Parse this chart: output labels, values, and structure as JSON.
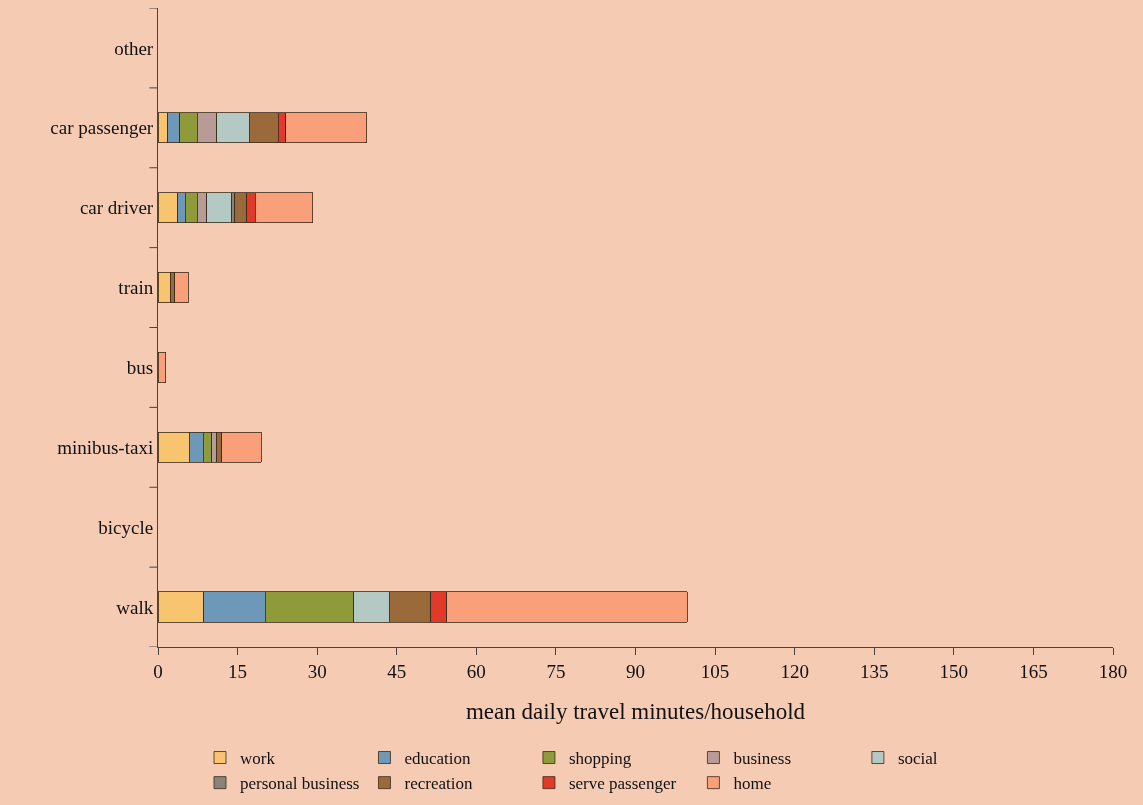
{
  "chart_data": {
    "type": "bar",
    "orientation": "horizontal",
    "stacked": true,
    "xlabel": "mean daily travel minutes/household",
    "categories": [
      "other",
      "car passenger",
      "car driver",
      "train",
      "bus",
      "minibus-taxi",
      "bicycle",
      "walk"
    ],
    "xlim": [
      0,
      180
    ],
    "xticks": [
      0,
      15,
      30,
      45,
      60,
      75,
      90,
      105,
      120,
      135,
      150,
      165,
      180
    ],
    "grid": false,
    "legend": "bottom",
    "series": [
      {
        "name": "work",
        "color": "#f9c46f",
        "values": [
          null,
          1.8,
          3.7,
          2.4,
          null,
          5.9,
          null,
          8.6
        ]
      },
      {
        "name": "education",
        "color": "#6e98b8",
        "values": [
          null,
          2.3,
          1.4,
          null,
          null,
          2.6,
          null,
          11.6
        ]
      },
      {
        "name": "shopping",
        "color": "#8f9a3a",
        "values": [
          null,
          3.3,
          2.3,
          null,
          null,
          1.6,
          null,
          16.7
        ]
      },
      {
        "name": "business",
        "color": "#b89a96",
        "values": [
          null,
          3.7,
          1.8,
          null,
          null,
          1.0,
          null,
          null
        ]
      },
      {
        "name": "social",
        "color": "#b4c8c4",
        "values": [
          null,
          6.1,
          4.7,
          null,
          null,
          null,
          null,
          6.7
        ]
      },
      {
        "name": "personal business",
        "color": "#8a8478",
        "values": [
          null,
          null,
          0.6,
          null,
          null,
          null,
          null,
          null
        ]
      },
      {
        "name": "recreation",
        "color": "#9a6a3a",
        "values": [
          null,
          5.5,
          2.2,
          0.8,
          null,
          0.9,
          null,
          7.8
        ]
      },
      {
        "name": "serve passenger",
        "color": "#e23a2a",
        "values": [
          null,
          1.4,
          1.6,
          null,
          null,
          null,
          null,
          3.0
        ]
      },
      {
        "name": "home",
        "color": "#f9a07a",
        "values": [
          null,
          15.2,
          10.9,
          2.5,
          1.5,
          7.5,
          null,
          45.4
        ]
      }
    ]
  }
}
